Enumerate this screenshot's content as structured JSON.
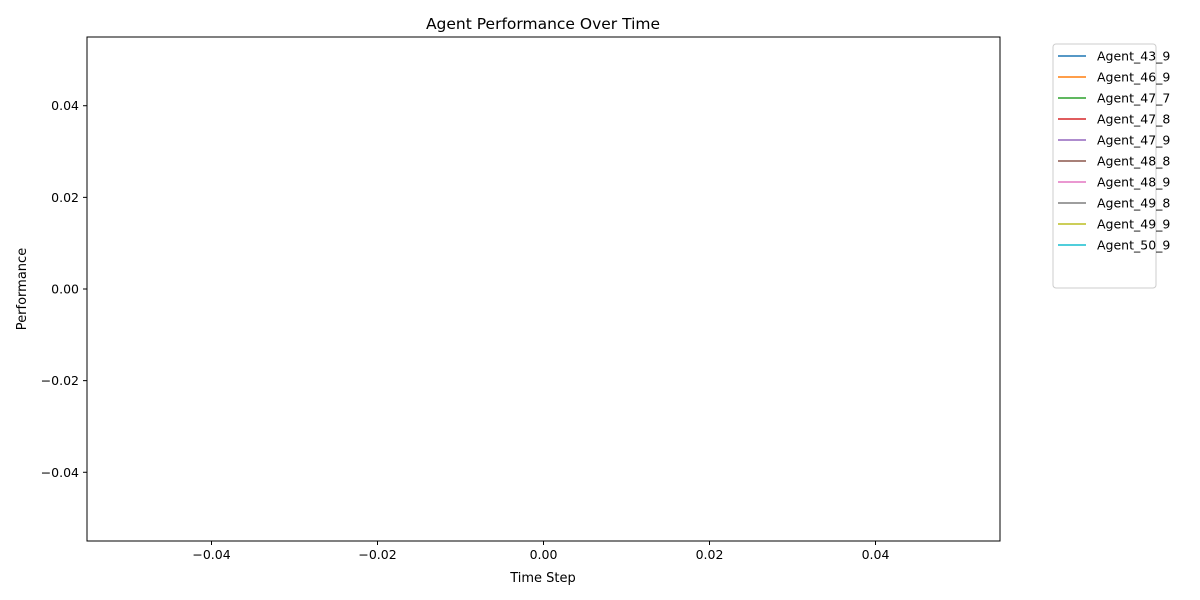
{
  "chart_data": {
    "type": "line",
    "title": "Agent Performance Over Time",
    "xlabel": "Time Step",
    "ylabel": "Performance",
    "xlim": [
      -0.055,
      0.055
    ],
    "ylim": [
      -0.055,
      0.055
    ],
    "x_ticks": [
      -0.04,
      -0.02,
      0.0,
      0.02,
      0.04
    ],
    "x_tick_labels": [
      "−0.04",
      "−0.02",
      "0.00",
      "0.02",
      "0.04"
    ],
    "y_ticks": [
      -0.04,
      -0.02,
      0.0,
      0.02,
      0.04
    ],
    "y_tick_labels": [
      "−0.04",
      "−0.02",
      "0.00",
      "0.02",
      "0.04"
    ],
    "grid": false,
    "legend_position": "outside-top-right",
    "series": [
      {
        "name": "Agent_43_9",
        "color": "#1f77b4",
        "x": [],
        "values": []
      },
      {
        "name": "Agent_46_9",
        "color": "#ff7f0e",
        "x": [],
        "values": []
      },
      {
        "name": "Agent_47_7",
        "color": "#2ca02c",
        "x": [],
        "values": []
      },
      {
        "name": "Agent_47_8",
        "color": "#d62728",
        "x": [],
        "values": []
      },
      {
        "name": "Agent_47_9",
        "color": "#9467bd",
        "x": [],
        "values": []
      },
      {
        "name": "Agent_48_8",
        "color": "#8c564b",
        "x": [],
        "values": []
      },
      {
        "name": "Agent_48_9",
        "color": "#e377c2",
        "x": [],
        "values": []
      },
      {
        "name": "Agent_49_8",
        "color": "#7f7f7f",
        "x": [],
        "values": []
      },
      {
        "name": "Agent_49_9",
        "color": "#bcbd22",
        "x": [],
        "values": []
      },
      {
        "name": "Agent_50_9",
        "color": "#17becf",
        "x": [],
        "values": []
      }
    ]
  }
}
